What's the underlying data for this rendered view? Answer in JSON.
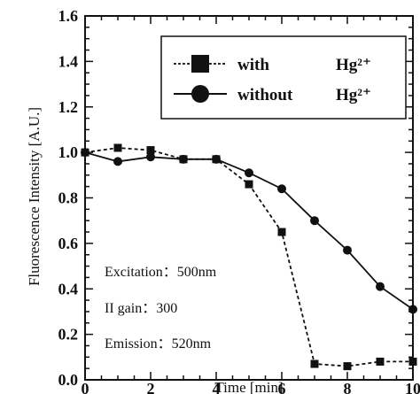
{
  "chart_data": {
    "type": "line",
    "title": "",
    "xlabel": "Time [min]",
    "ylabel": "Fluorescence Intensity [A.U.]",
    "xlim": [
      0,
      10
    ],
    "ylim": [
      0,
      1.6
    ],
    "x_ticks": [
      "0",
      "2",
      "4",
      "6",
      "8",
      "10"
    ],
    "y_ticks": [
      "0.0",
      "0.2",
      "0.4",
      "0.6",
      "0.8",
      "1.0",
      "1.2",
      "1.4",
      "1.6"
    ],
    "grid": false,
    "legend_position": "top-right",
    "series": [
      {
        "name": "with",
        "name_suffix": "Hg²⁺",
        "marker": "square",
        "line_style": "dashed",
        "color": "#111111",
        "x": [
          0,
          1,
          2,
          3,
          4,
          5,
          6,
          7,
          8,
          9,
          10
        ],
        "y": [
          1.0,
          1.02,
          1.01,
          0.97,
          0.97,
          0.86,
          0.65,
          0.07,
          0.06,
          0.08,
          0.08
        ]
      },
      {
        "name": "without",
        "name_suffix": "Hg²⁺",
        "marker": "circle",
        "line_style": "solid",
        "color": "#111111",
        "x": [
          0,
          1,
          2,
          3,
          4,
          5,
          6,
          7,
          8,
          9,
          10
        ],
        "y": [
          1.0,
          0.96,
          0.98,
          0.97,
          0.97,
          0.91,
          0.84,
          0.7,
          0.57,
          0.41,
          0.31
        ]
      }
    ],
    "annotations": [
      "Excitation：500nm",
      "II gain：300",
      "Emission：520nm"
    ]
  }
}
